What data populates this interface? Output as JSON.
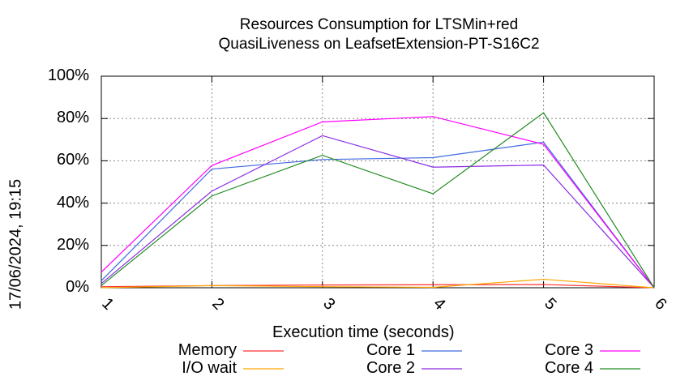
{
  "chart_data": {
    "type": "line",
    "title": [
      "Resources Consumption for LTSMin+red",
      "QuasiLiveness on LeafsetExtension-PT-S16C2"
    ],
    "xlabel": "Execution time (seconds)",
    "ylabel": "",
    "x": [
      1,
      2,
      3,
      4,
      5,
      6
    ],
    "xticks": [
      "1",
      "2",
      "3",
      "4",
      "5",
      "6"
    ],
    "yticks": [
      "0%",
      "20%",
      "40%",
      "60%",
      "80%",
      "100%"
    ],
    "ylim": [
      0,
      100
    ],
    "xlim": [
      1,
      6
    ],
    "grid": true,
    "legend_position": "bottom",
    "series": [
      {
        "name": "Memory",
        "color": "#ff3030",
        "values": [
          0.5,
          1.0,
          1.3,
          1.4,
          1.5,
          0
        ]
      },
      {
        "name": "I/O wait",
        "color": "#ffa500",
        "values": [
          0,
          1.0,
          0.5,
          0.2,
          4.0,
          0
        ]
      },
      {
        "name": "Core 1",
        "color": "#4169e1",
        "values": [
          3.3,
          56.1,
          60.6,
          61.5,
          68.8,
          0
        ]
      },
      {
        "name": "Core 2",
        "color": "#8a2be2",
        "values": [
          2.0,
          45.7,
          71.9,
          57.0,
          58.0,
          0
        ]
      },
      {
        "name": "Core 3",
        "color": "#ff00ff",
        "values": [
          7.4,
          57.8,
          78.4,
          80.9,
          67.8,
          0
        ]
      },
      {
        "name": "Core 4",
        "color": "#228b22",
        "values": [
          1.0,
          43.4,
          62.6,
          44.4,
          82.7,
          0
        ]
      }
    ]
  },
  "timestamp": "17/06/2024, 19:15"
}
